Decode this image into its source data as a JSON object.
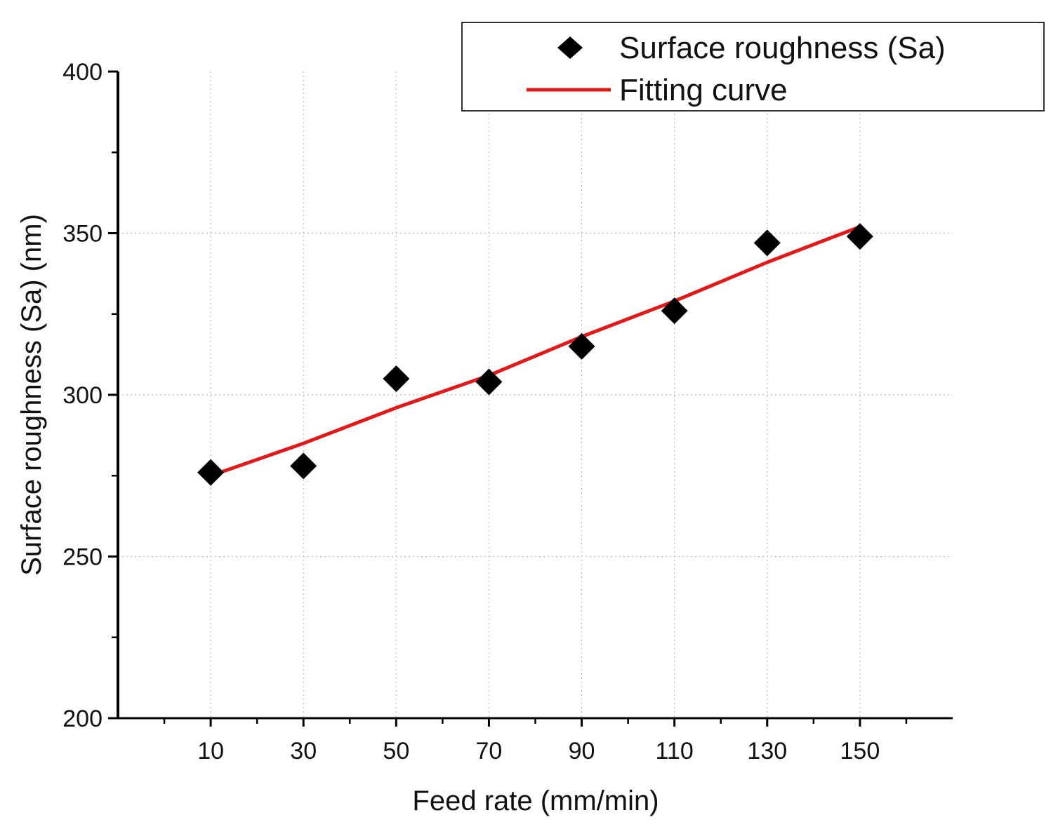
{
  "chart_data": {
    "type": "scatter",
    "title": "",
    "xlabel": "Feed rate (mm/min)",
    "ylabel": "Surface roughness (Sa) (nm)",
    "x_ticks": [
      10,
      30,
      50,
      70,
      90,
      110,
      130,
      150
    ],
    "y_ticks": [
      200,
      250,
      300,
      350,
      400
    ],
    "xlim": [
      -10,
      170
    ],
    "ylim": [
      200,
      400
    ],
    "grid": "dotted, at labeled ticks",
    "legend_position": "top-right",
    "series": [
      {
        "name": "Surface roughness (Sa)",
        "kind": "scatter",
        "marker": "diamond",
        "color": "#000000",
        "x": [
          10,
          30,
          50,
          70,
          90,
          110,
          130,
          150
        ],
        "y": [
          276,
          278,
          305,
          304,
          315,
          326,
          347,
          349
        ]
      },
      {
        "name": "Fitting curve",
        "kind": "line",
        "color": "#e0191b",
        "x": [
          10,
          30,
          50,
          70,
          90,
          110,
          130,
          150
        ],
        "y": [
          275,
          285,
          296,
          306,
          318,
          329,
          341,
          352
        ]
      }
    ]
  }
}
